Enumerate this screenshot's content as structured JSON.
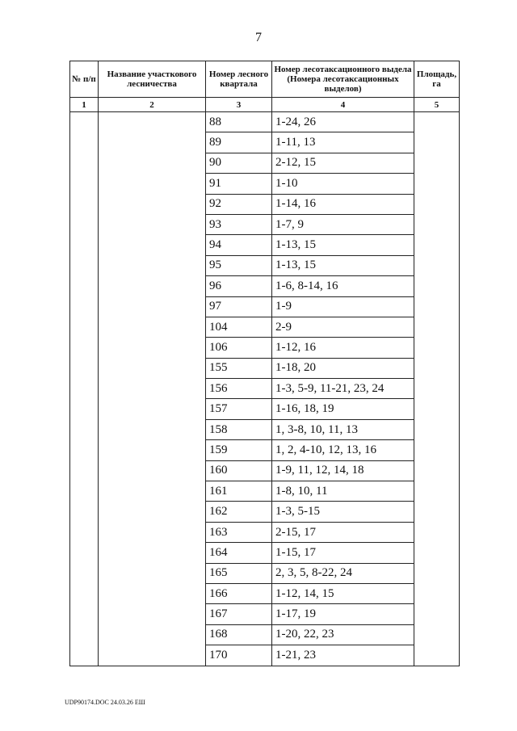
{
  "page_number": "7",
  "table": {
    "headers": [
      "№ п/п",
      "Название участкового лесничества",
      "Номер лесного квартала",
      "Номер лесотаксационного выдела (Номера лесотаксационных выделов)",
      "Площадь, га"
    ],
    "column_numbers": [
      "1",
      "2",
      "3",
      "4",
      "5"
    ],
    "rows": [
      {
        "quarter": "88",
        "sections": "1-24, 26"
      },
      {
        "quarter": "89",
        "sections": "1-11, 13"
      },
      {
        "quarter": "90",
        "sections": "2-12, 15"
      },
      {
        "quarter": "91",
        "sections": "1-10"
      },
      {
        "quarter": "92",
        "sections": "1-14, 16"
      },
      {
        "quarter": "93",
        "sections": "1-7, 9"
      },
      {
        "quarter": "94",
        "sections": "1-13, 15"
      },
      {
        "quarter": "95",
        "sections": "1-13, 15"
      },
      {
        "quarter": "96",
        "sections": "1-6, 8-14, 16"
      },
      {
        "quarter": "97",
        "sections": "1-9"
      },
      {
        "quarter": "104",
        "sections": "2-9"
      },
      {
        "quarter": "106",
        "sections": "1-12, 16"
      },
      {
        "quarter": "155",
        "sections": "1-18, 20"
      },
      {
        "quarter": "156",
        "sections": "1-3, 5-9, 11-21, 23, 24"
      },
      {
        "quarter": "157",
        "sections": "1-16, 18, 19"
      },
      {
        "quarter": "158",
        "sections": "1, 3-8, 10, 11, 13"
      },
      {
        "quarter": "159",
        "sections": "1, 2, 4-10, 12, 13, 16"
      },
      {
        "quarter": "160",
        "sections": "1-9, 11, 12, 14, 18"
      },
      {
        "quarter": "161",
        "sections": "1-8, 10, 11"
      },
      {
        "quarter": "162",
        "sections": "1-3, 5-15"
      },
      {
        "quarter": "163",
        "sections": "2-15, 17"
      },
      {
        "quarter": "164",
        "sections": "1-15, 17"
      },
      {
        "quarter": "165",
        "sections": "2, 3, 5, 8-22, 24"
      },
      {
        "quarter": "166",
        "sections": "1-12, 14, 15"
      },
      {
        "quarter": "167",
        "sections": "1-17, 19"
      },
      {
        "quarter": "168",
        "sections": "1-20, 22, 23"
      },
      {
        "quarter": "170",
        "sections": "1-21, 23"
      }
    ]
  },
  "footer": "UDP90174.DOC  24.03.26  ЕШ"
}
